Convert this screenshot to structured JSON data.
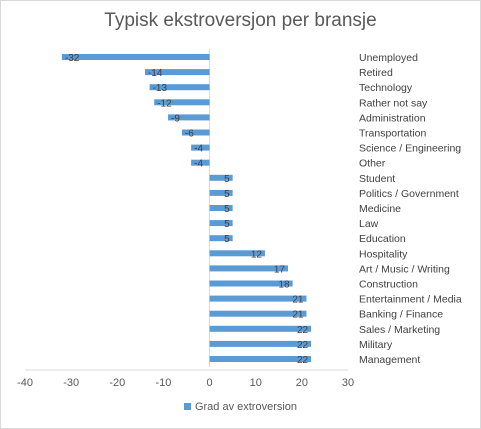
{
  "colors": {
    "bar": "#5b9bd5",
    "text": "#404040",
    "axis": "#d9d9d9"
  },
  "chart_data": {
    "type": "bar",
    "orientation": "horizontal",
    "title": "Typisk ekstroversjon per bransje",
    "xlabel": "",
    "ylabel": "",
    "xlim": [
      -40,
      30
    ],
    "xticks": [
      -40,
      -30,
      -20,
      -10,
      0,
      10,
      20,
      30
    ],
    "grid": false,
    "legend_position": "bottom",
    "categories": [
      "Unemployed",
      "Retired",
      "Technology",
      "Rather not say",
      "Administration",
      "Transportation",
      "Science / Engineering",
      "Other",
      "Student",
      "Politics / Government",
      "Medicine",
      "Law",
      "Education",
      "Hospitality",
      "Art / Music / Writing",
      "Construction",
      "Entertainment / Media",
      "Banking / Finance",
      "Sales / Marketing",
      "Military",
      "Management"
    ],
    "series": [
      {
        "name": "Grad av extroversion",
        "values": [
          -32,
          -14,
          -13,
          -12,
          -9,
          -6,
          -4,
          -4,
          5,
          5,
          5,
          5,
          5,
          12,
          17,
          18,
          21,
          21,
          22,
          22,
          22
        ]
      }
    ]
  }
}
